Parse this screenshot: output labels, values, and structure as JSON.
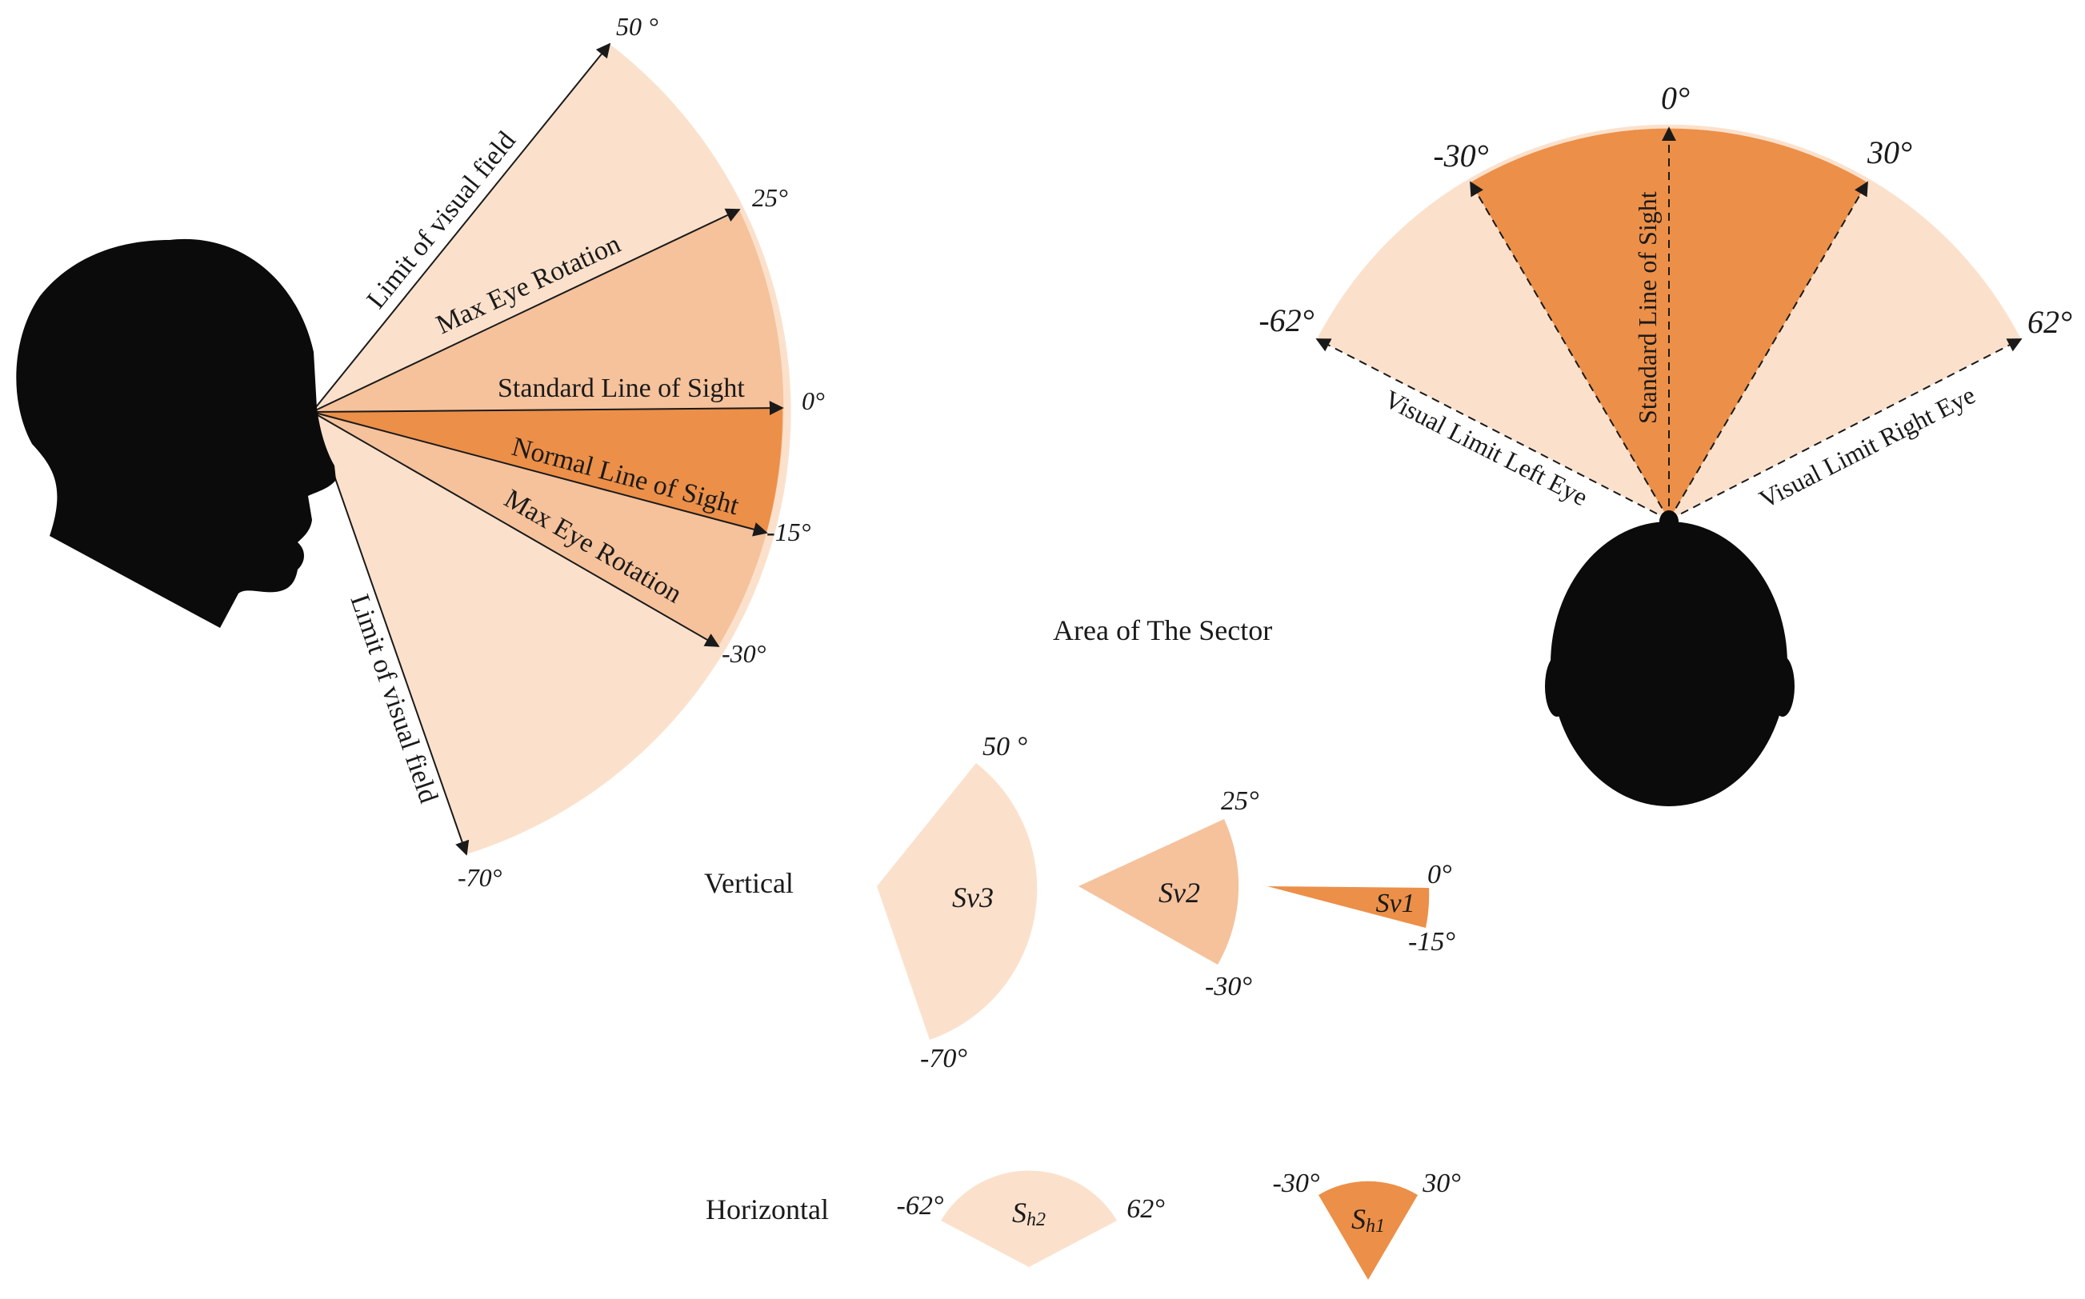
{
  "colors": {
    "light": "#fbe1cc",
    "medium": "#f5c29c",
    "dark": "#ec8f48",
    "silhouette": "#0b0b0b"
  },
  "side_view": {
    "angles": {
      "up_limit": "50 °",
      "up_rotation": "25°",
      "standard": "0°",
      "normal": "-15°",
      "down_rotation": "-30°",
      "down_limit": "-70°"
    },
    "lines": {
      "limit_up": "Limit of visual field",
      "rotation_up": "Max Eye Rotation",
      "standard": "Standard Line of Sight",
      "normal": "Normal Line of Sight",
      "rotation_down": "Max Eye Rotation",
      "limit_down": "Limit of visual field"
    }
  },
  "top_view": {
    "angles": {
      "center": "0°",
      "left_inner": "-30°",
      "right_inner": "30°",
      "left_outer": "-62°",
      "right_outer": "62°"
    },
    "lines": {
      "standard": "Standard Line of Sight",
      "left_eye": "Visual Limit Left Eye",
      "right_eye": "Visual Limit Right Eye"
    }
  },
  "sectors": {
    "title": "Area of The Sector",
    "vertical_label": "Vertical",
    "horizontal_label": "Horizontal",
    "sv3": {
      "name": "Sv3",
      "top": "50 °",
      "bottom": "-70°"
    },
    "sv2": {
      "name": "Sv2",
      "top": "25°",
      "bottom": "-30°"
    },
    "sv1": {
      "name": "Sv1",
      "top": "0°",
      "bottom": "-15°"
    },
    "sh2": {
      "name_main": "S",
      "name_sub": "h2",
      "left": "-62°",
      "right": "62°"
    },
    "sh1": {
      "name_main": "S",
      "name_sub": "h1",
      "left": "-30°",
      "right": "30°"
    }
  }
}
